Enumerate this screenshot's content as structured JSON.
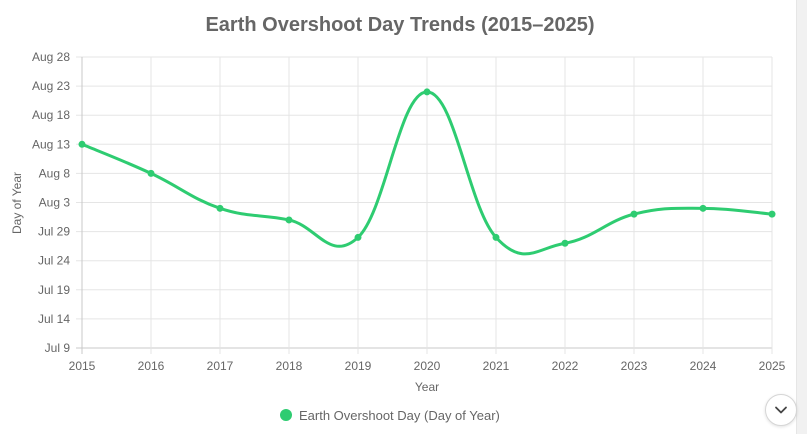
{
  "chart_data": {
    "type": "line",
    "title": "Earth Overshoot Day Trends (2015–2025)",
    "xlabel": "Year",
    "ylabel": "Day of Year",
    "x": [
      2015,
      2016,
      2017,
      2018,
      2019,
      2020,
      2021,
      2022,
      2023,
      2024,
      2025
    ],
    "x_tick_labels": [
      "2015",
      "2016",
      "2017",
      "2018",
      "2019",
      "2020",
      "2021",
      "2022",
      "2023",
      "2024",
      "2025"
    ],
    "y_tick_values": [
      190,
      195,
      200,
      205,
      210,
      215,
      220,
      225,
      230,
      235,
      240
    ],
    "y_tick_labels": [
      "Jul 9",
      "Jul 14",
      "Jul 19",
      "Jul 24",
      "Jul 29",
      "Aug 3",
      "Aug 8",
      "Aug 13",
      "Aug 18",
      "Aug 23",
      "Aug 28"
    ],
    "ylim": [
      190,
      240
    ],
    "grid": true,
    "legend_position": "bottom",
    "series": [
      {
        "name": "Earth Overshoot Day (Day of Year)",
        "color": "#2ecc71",
        "values": [
          225,
          220,
          214,
          212,
          209,
          234,
          209,
          208,
          213,
          214,
          213
        ]
      }
    ]
  },
  "ui": {
    "scroll_icon": "chevron-down-icon"
  }
}
